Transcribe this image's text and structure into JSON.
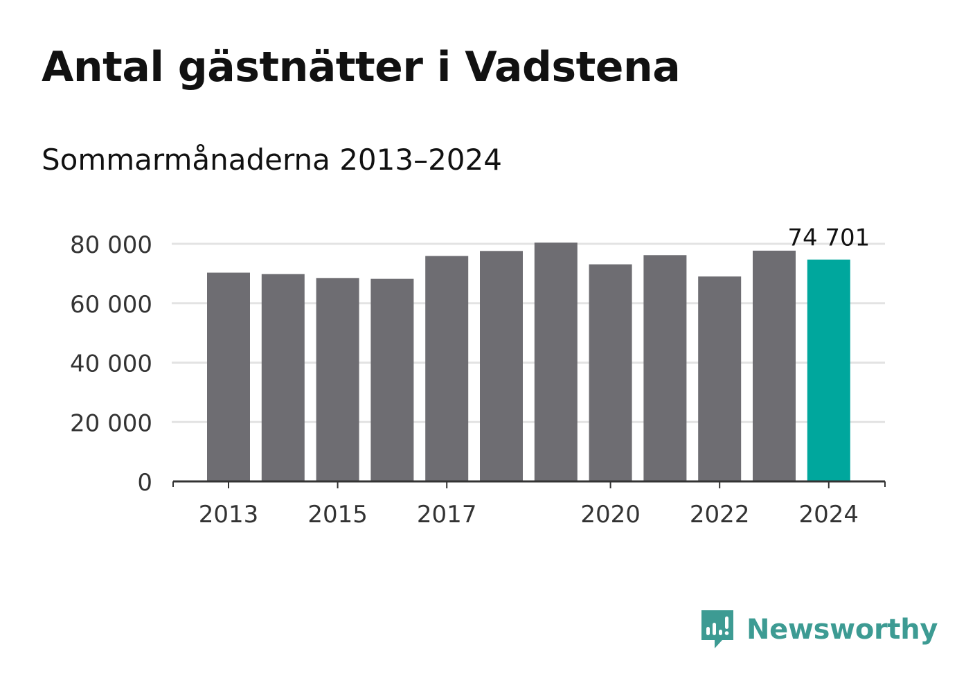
{
  "title": "Antal gästnätter i Vadstena",
  "subtitle": "Sommarmånaderna 2013–2024",
  "brand": {
    "name": "Newsworthy",
    "icon": "newsworthy-logo-icon",
    "color": "#3d9b93"
  },
  "chart_data": {
    "type": "bar",
    "categories": [
      "2013",
      "2014",
      "2015",
      "2016",
      "2017",
      "2018",
      "2019",
      "2020",
      "2021",
      "2022",
      "2023",
      "2024"
    ],
    "values": [
      70300,
      69800,
      68500,
      68200,
      75900,
      77600,
      80400,
      73100,
      76200,
      69000,
      77700,
      74701
    ],
    "highlight_index": 11,
    "highlight_label": "74 701",
    "x_tick_labels": [
      "2013",
      "2015",
      "2017",
      "2020",
      "2022",
      "2024"
    ],
    "y_ticks": [
      0,
      20000,
      40000,
      60000,
      80000
    ],
    "y_tick_labels": [
      "0",
      "20 000",
      "40 000",
      "60 000",
      "80 000"
    ],
    "ylim": [
      0,
      80000
    ],
    "xlabel": "",
    "ylabel": "",
    "grid": true,
    "colors": {
      "bar": "#6e6d72",
      "highlight": "#00a79d",
      "grid": "#e3e3e3",
      "axis": "#333333",
      "tick_text": "#333333"
    }
  }
}
